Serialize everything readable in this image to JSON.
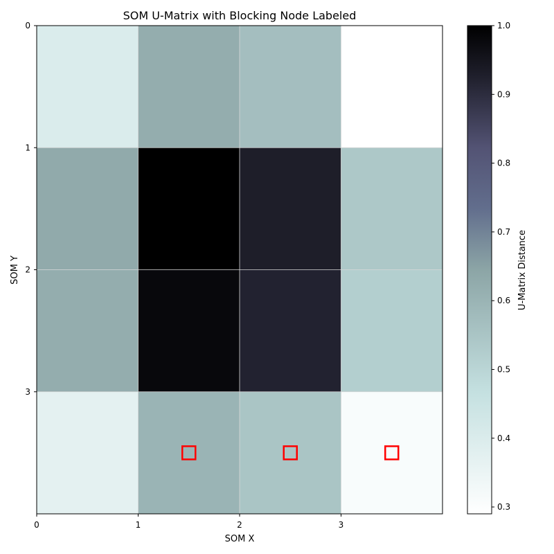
{
  "chart_data": {
    "type": "heatmap",
    "title": "SOM U-Matrix with Blocking Node Labeled",
    "xlabel": "SOM X",
    "ylabel": "SOM Y",
    "x_ticks": [
      "0",
      "1",
      "2",
      "3"
    ],
    "y_ticks": [
      "0",
      "1",
      "2",
      "3"
    ],
    "xlim": [
      0,
      4
    ],
    "ylim": [
      4,
      0
    ],
    "grid": true,
    "values": [
      [
        0.4,
        0.62,
        0.57,
        0.29
      ],
      [
        0.63,
        1.0,
        0.93,
        0.54
      ],
      [
        0.62,
        0.98,
        0.92,
        0.52
      ],
      [
        0.37,
        0.6,
        0.55,
        0.31
      ]
    ],
    "markers": [
      {
        "x": 1.5,
        "y": 3.5
      },
      {
        "x": 2.5,
        "y": 3.5
      },
      {
        "x": 3.5,
        "y": 3.5
      }
    ],
    "marker_color": "#ff0000",
    "colorbar": {
      "label": "U-Matrix Distance",
      "min": 0.29,
      "max": 1.0,
      "ticks": [
        "0.3",
        "0.4",
        "0.5",
        "0.6",
        "0.7",
        "0.8",
        "0.9",
        "1.0"
      ],
      "colormap": "bone_r"
    }
  }
}
